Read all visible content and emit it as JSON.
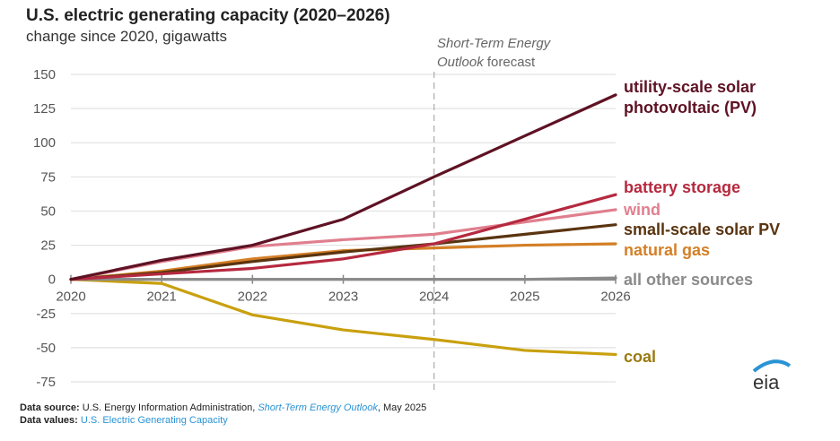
{
  "header": {
    "title": "U.S. electric generating capacity (2020–2026)",
    "subtitle": "change since 2020, gigawatts"
  },
  "annotation": {
    "forecast_line1": "Short-Term Energy",
    "forecast_line2_italic": "Outlook",
    "forecast_line2_rest": " forecast",
    "forecast_start_year": 2024
  },
  "footer": {
    "source_label": "Data source:",
    "source_text_1": " U.S. Energy Information Administration, ",
    "source_link": "Short-Term Energy Outlook",
    "source_text_2": ", May 2025",
    "values_label": "Data values:",
    "values_link": "U.S. Electric Generating Capacity"
  },
  "logo": {
    "text": "eia",
    "icon": "eia-logo-icon",
    "arc_color": "#2a93d5"
  },
  "chart_data": {
    "type": "line",
    "title": "U.S. electric generating capacity (2020–2026)",
    "subtitle": "change since 2020, gigawatts",
    "xlabel": "",
    "ylabel": "gigawatts",
    "x": [
      2020,
      2021,
      2022,
      2023,
      2024,
      2025,
      2026
    ],
    "x_tick_labels": [
      "2020",
      "2021",
      "2022",
      "2023",
      "2024",
      "2025",
      "2026"
    ],
    "ylim": [
      -75,
      150
    ],
    "y_ticks": [
      150,
      125,
      100,
      75,
      50,
      25,
      0,
      -25,
      -50,
      -75
    ],
    "y_tick_labels": [
      "150",
      "125",
      "100",
      "75",
      "50",
      "25",
      "0",
      "-25",
      "-50",
      "-75"
    ],
    "grid": true,
    "legend": "direct labels at line ends (right)",
    "series": [
      {
        "name": "utility-scale solar photovoltaic (PV)",
        "label_lines": [
          "utility-scale solar",
          "photovoltaic (PV)"
        ],
        "color": "#5e1224",
        "values": [
          0,
          14,
          25,
          44,
          75,
          105,
          135
        ]
      },
      {
        "name": "battery storage",
        "label_lines": [
          "battery storage"
        ],
        "color": "#b5293f",
        "values": [
          0,
          4,
          8,
          15,
          26,
          44,
          62
        ]
      },
      {
        "name": "wind",
        "label_lines": [
          "wind"
        ],
        "color": "#e07f8e",
        "values": [
          0,
          13,
          24,
          29,
          33,
          42,
          51
        ]
      },
      {
        "name": "small-scale solar PV",
        "label_lines": [
          "small-scale solar PV"
        ],
        "color": "#5a3410",
        "values": [
          0,
          5,
          13,
          20,
          26,
          33,
          40
        ]
      },
      {
        "name": "natural gas",
        "label_lines": [
          "natural gas"
        ],
        "color": "#d47f26",
        "values": [
          0,
          6,
          15,
          21,
          23,
          25,
          26
        ]
      },
      {
        "name": "all other sources",
        "label_lines": [
          "all other sources"
        ],
        "color": "#8a8a8a",
        "values": [
          0,
          0,
          0,
          0,
          0,
          0,
          1
        ]
      },
      {
        "name": "coal",
        "label_lines": [
          "coal"
        ],
        "color": "#c9a00e",
        "label_color": "#9a7a10",
        "values": [
          0,
          -3,
          -26,
          -37,
          -44,
          -52,
          -55
        ]
      }
    ]
  }
}
